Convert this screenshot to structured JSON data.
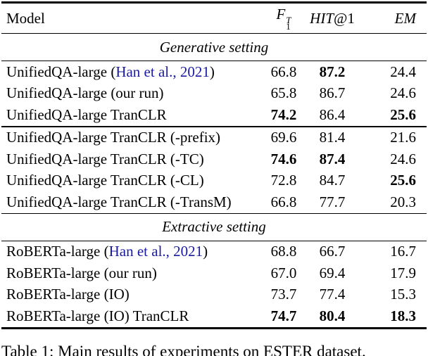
{
  "page": {
    "background_color": "#ffffff",
    "text_color": "#000000",
    "link_color": "#1b1b9f"
  },
  "table": {
    "header": {
      "model": "Model",
      "f1_base": "F",
      "f1_sup": "T",
      "f1_sub": "1",
      "hit_italic": "HIT",
      "hit_rest": "@1",
      "em": "EM"
    },
    "sections": [
      {
        "title": "Generative setting"
      },
      {
        "title": "Extractive setting"
      }
    ],
    "rows": [
      {
        "model_prefix": "UnifiedQA-large (",
        "model_link": "Han et al., 2021",
        "model_suffix": ")",
        "f1": "66.8",
        "hit": "87.2",
        "em": "24.4",
        "bold": [
          "hit"
        ]
      },
      {
        "model": "UnifiedQA-large (our run)",
        "f1": "65.8",
        "hit": "86.7",
        "em": "24.6",
        "bold": []
      },
      {
        "model": "UnifiedQA-large TranCLR",
        "f1": "74.2",
        "hit": "86.4",
        "em": "25.6",
        "bold": [
          "f1",
          "em"
        ]
      },
      {
        "model": "UnifiedQA-large TranCLR (-prefix)",
        "f1": "69.6",
        "hit": "81.4",
        "em": "21.6",
        "bold": []
      },
      {
        "model": "UnifiedQA-large TranCLR (-TC)",
        "f1": "74.6",
        "hit": "87.4",
        "em": "24.6",
        "bold": [
          "f1",
          "hit"
        ]
      },
      {
        "model": "UnifiedQA-large TranCLR (-CL)",
        "f1": "72.8",
        "hit": "84.7",
        "em": "25.6",
        "bold": [
          "em"
        ]
      },
      {
        "model": "UnifiedQA-large TranCLR (-TransM)",
        "f1": "66.8",
        "hit": "77.7",
        "em": "20.3",
        "bold": []
      },
      {
        "model_prefix": "RoBERTa-large (",
        "model_link": "Han et al., 2021",
        "model_suffix": ")",
        "f1": "68.8",
        "hit": "66.7",
        "em": "16.7",
        "bold": []
      },
      {
        "model": "RoBERTa-large (our run)",
        "f1": "67.0",
        "hit": "69.4",
        "em": "17.9",
        "bold": []
      },
      {
        "model": "RoBERTa-large (IO)",
        "f1": "73.7",
        "hit": "77.4",
        "em": "15.3",
        "bold": []
      },
      {
        "model": "RoBERTa-large (IO) TranCLR",
        "f1": "74.7",
        "hit": "80.4",
        "em": "18.3",
        "bold": [
          "f1",
          "hit",
          "em"
        ]
      }
    ]
  },
  "caption": {
    "text": "Table 1: Main results of experiments on ESTER dataset."
  }
}
